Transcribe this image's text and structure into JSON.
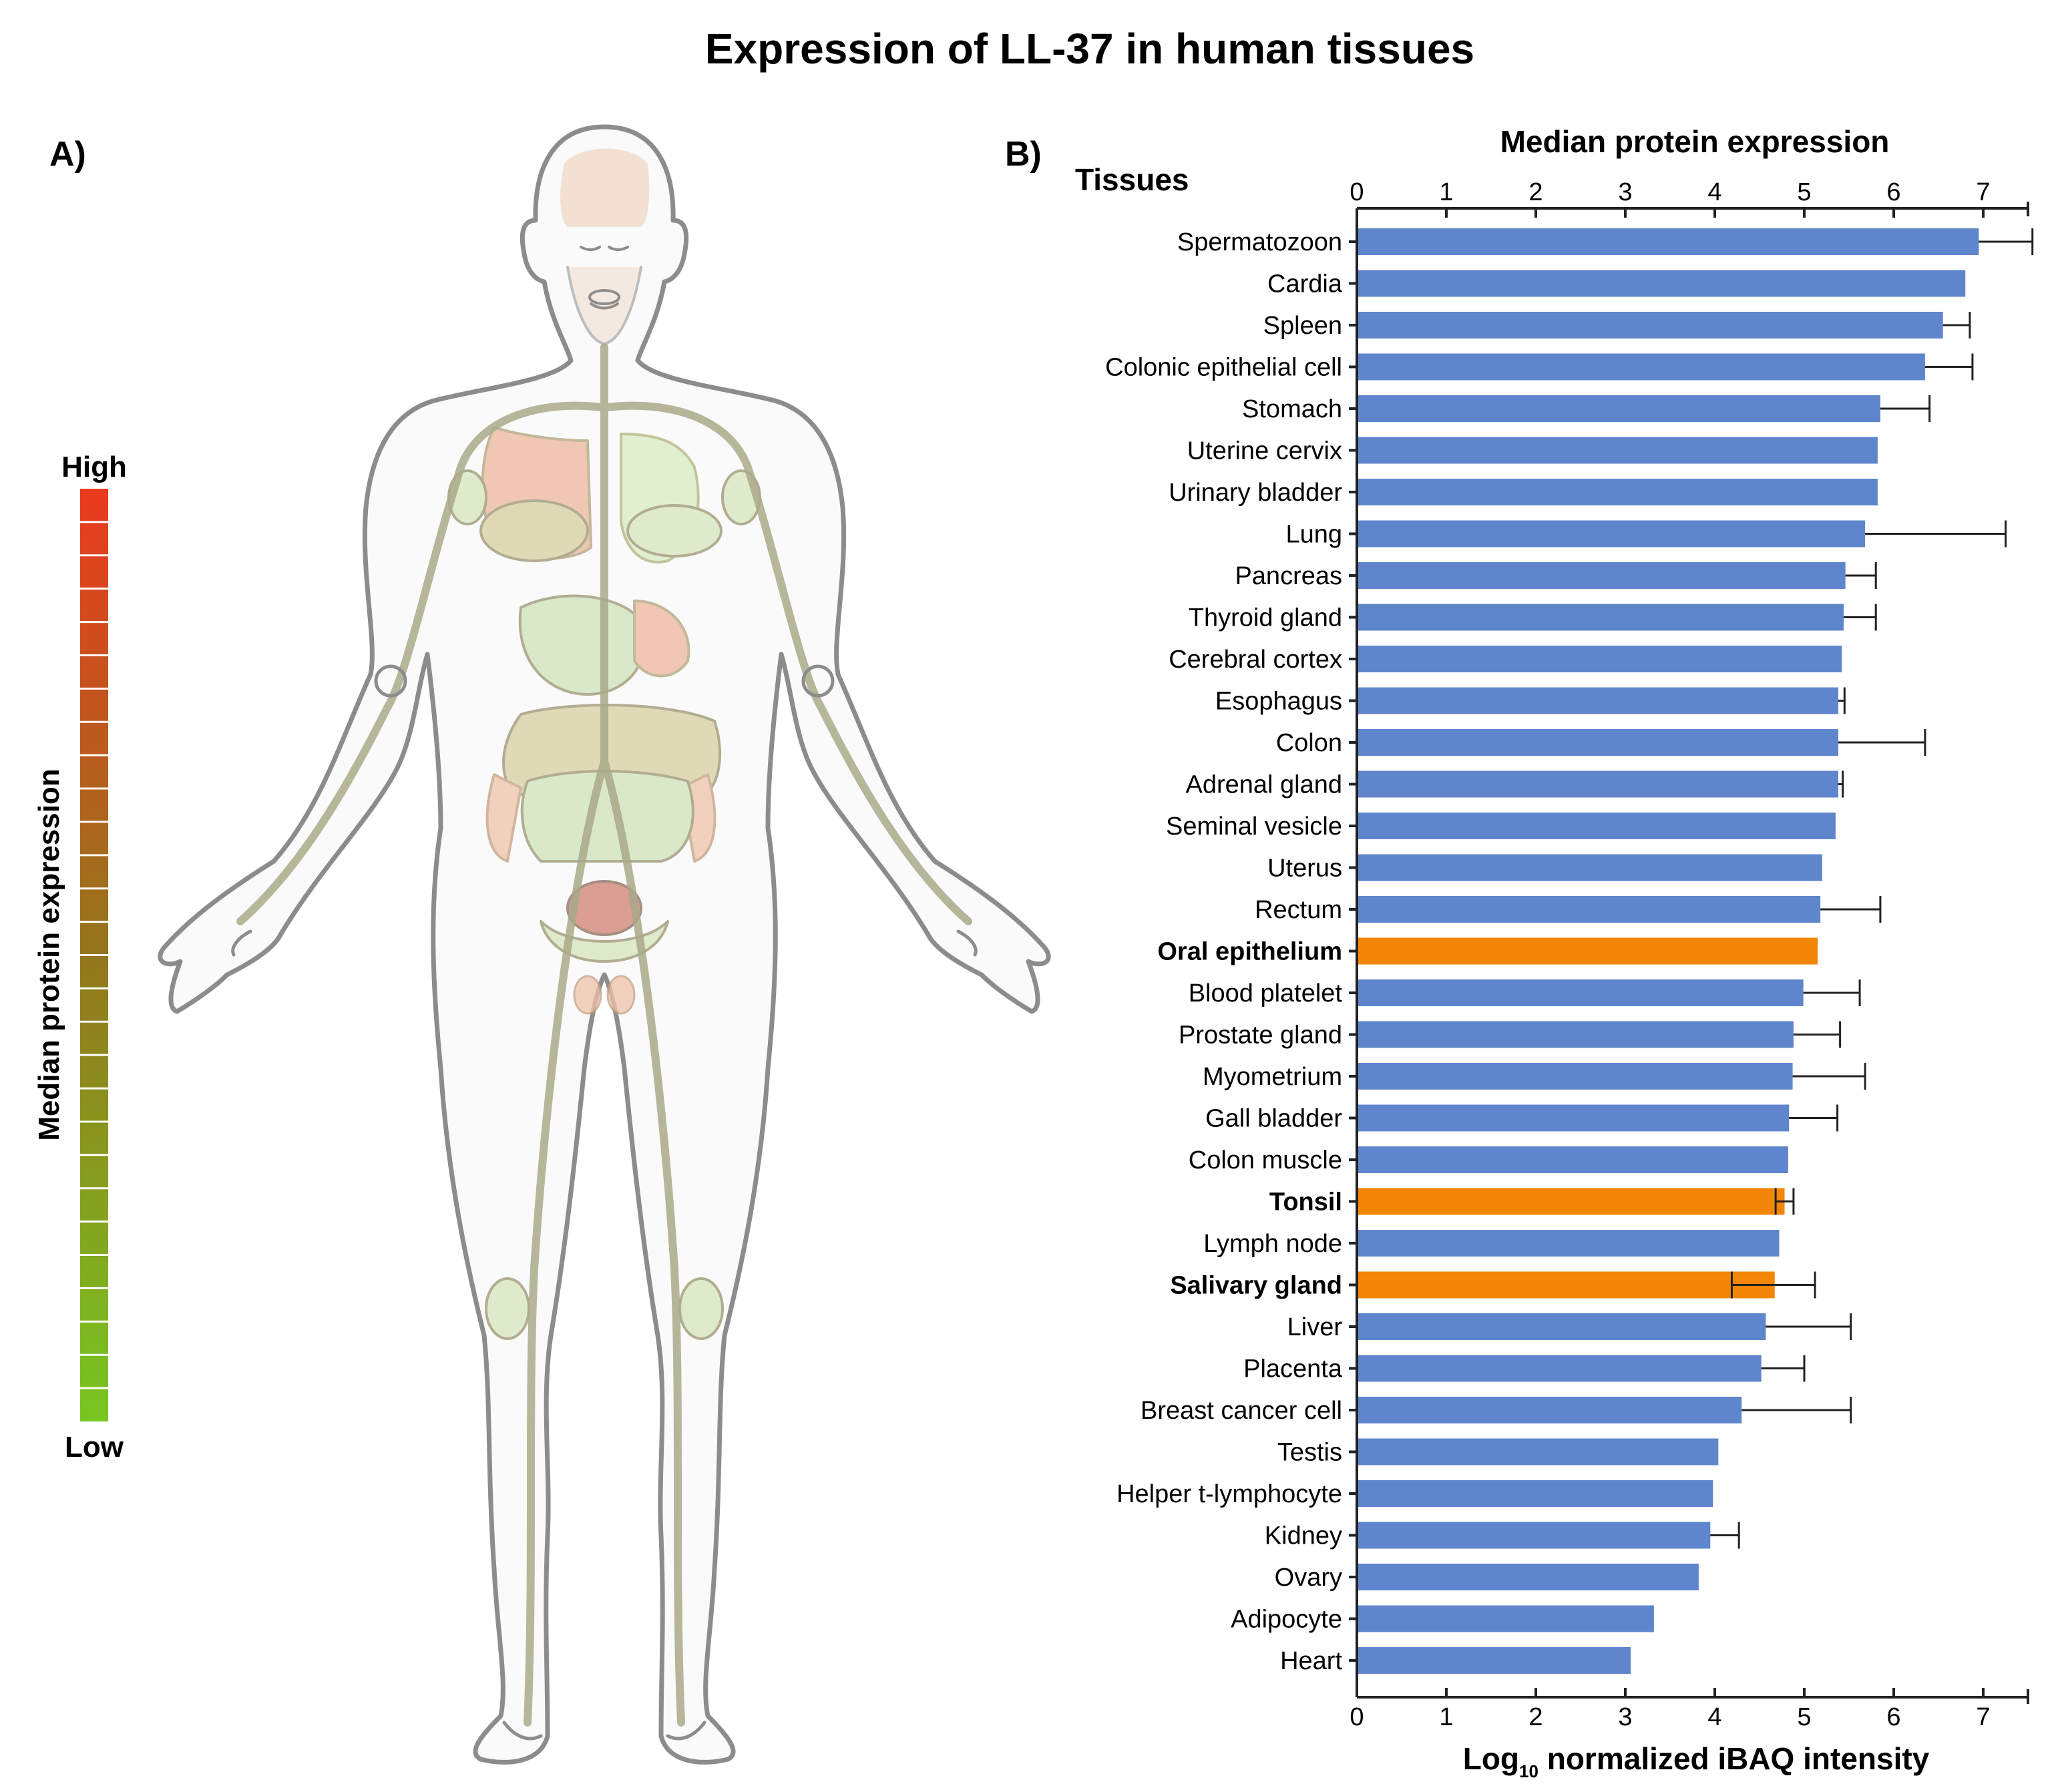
{
  "title": "Expression of LL-37 in human tissues",
  "panel_a": {
    "label": "A)",
    "legend_high": "High",
    "legend_low": "Low",
    "legend_title": "Median protein expression",
    "gradient_low_color": "#78c622",
    "gradient_mid_color": "#93761c",
    "gradient_high_color": "#ea3a1f"
  },
  "panel_b": {
    "label": "B)",
    "top_axis_title": "Median protein expression",
    "tissues_header": "Tissues",
    "xlabel_prefix": "Log",
    "xlabel_sub": "10",
    "xlabel_rest": " normalized iBAQ intensity"
  },
  "chart_data": {
    "type": "bar",
    "orientation": "horizontal",
    "title": "Median protein expression",
    "xlabel": "Log10 normalized iBAQ intensity",
    "ylabel": "Tissues",
    "xlim": [
      0,
      7.5
    ],
    "xticks": [
      0,
      1,
      2,
      3,
      4,
      5,
      6,
      7
    ],
    "colors": {
      "default": "#5f85cc",
      "highlight": "#f28608"
    },
    "categories": [
      "Spermatozoon",
      "Cardia",
      "Spleen",
      "Colonic epithelial cell",
      "Stomach",
      "Uterine cervix",
      "Urinary bladder",
      "Lung",
      "Pancreas",
      "Thyroid gland",
      "Cerebral cortex",
      "Esophagus",
      "Colon",
      "Adrenal gland",
      "Seminal vesicle",
      "Uterus",
      "Rectum",
      "Oral epithelium",
      "Blood platelet",
      "Prostate gland",
      "Myometrium",
      "Gall bladder",
      "Colon muscle",
      "Tonsil",
      "Lymph node",
      "Salivary gland",
      "Liver",
      "Placenta",
      "Breast cancer cell",
      "Testis",
      "Helper t-lymphocyte",
      "Kidney",
      "Ovary",
      "Adipocyte",
      "Heart"
    ],
    "values": [
      6.95,
      6.8,
      6.55,
      6.35,
      5.85,
      5.82,
      5.82,
      5.68,
      5.46,
      5.44,
      5.42,
      5.38,
      5.38,
      5.38,
      5.35,
      5.2,
      5.18,
      5.15,
      4.99,
      4.88,
      4.87,
      4.83,
      4.82,
      4.78,
      4.72,
      4.67,
      4.57,
      4.52,
      4.3,
      4.04,
      3.98,
      3.95,
      3.82,
      3.32,
      3.06
    ],
    "error_low": [
      null,
      null,
      null,
      null,
      null,
      null,
      null,
      null,
      null,
      null,
      null,
      null,
      null,
      null,
      null,
      null,
      null,
      null,
      null,
      null,
      null,
      null,
      null,
      4.68,
      null,
      4.19,
      null,
      null,
      null,
      null,
      null,
      null,
      null,
      null,
      null
    ],
    "error_high": [
      7.55,
      null,
      6.85,
      6.88,
      6.4,
      null,
      null,
      7.25,
      5.8,
      5.8,
      null,
      5.45,
      6.35,
      5.43,
      null,
      null,
      5.85,
      null,
      5.62,
      5.4,
      5.68,
      5.37,
      null,
      4.88,
      null,
      5.12,
      5.52,
      5.0,
      5.52,
      null,
      null,
      4.27,
      null,
      null,
      null
    ],
    "highlighted": [
      "Oral epithelium",
      "Tonsil",
      "Salivary gland"
    ]
  }
}
